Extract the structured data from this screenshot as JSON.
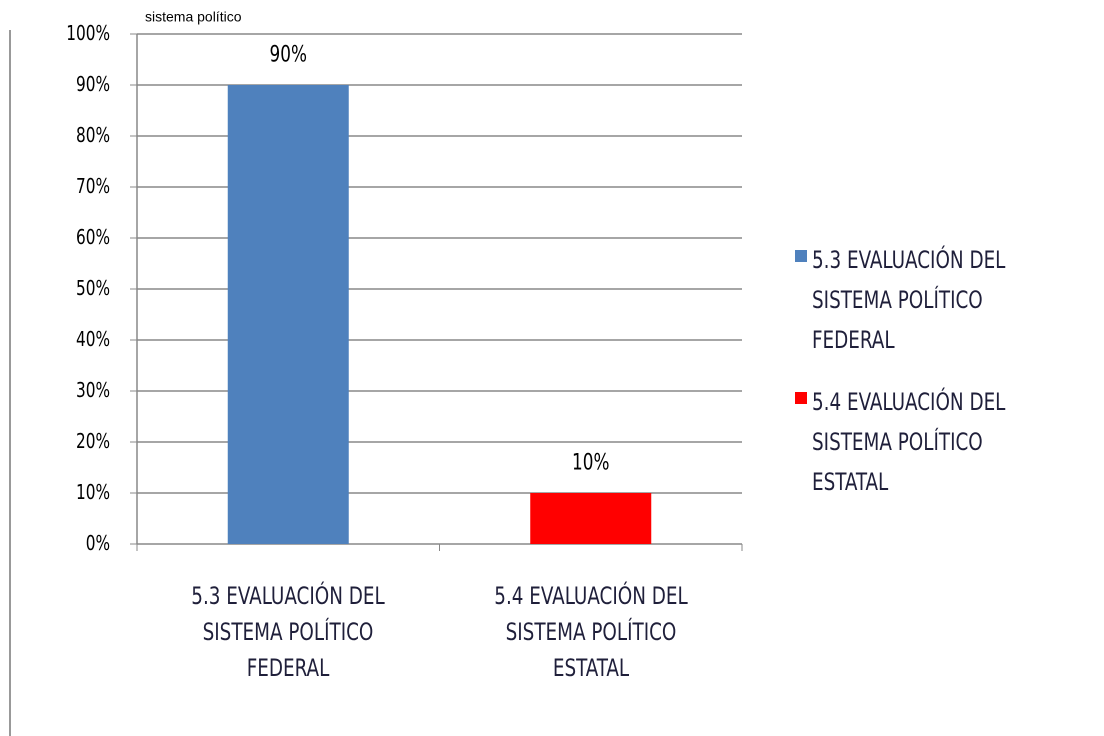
{
  "chart_data": {
    "type": "bar",
    "title": "sistema político",
    "categories": [
      "5.3 EVALUACIÓN DEL SISTEMA POLÍTICO FEDERAL",
      "5.4 EVALUACIÓN DEL SISTEMA POLÍTICO ESTATAL"
    ],
    "values": [
      90,
      10
    ],
    "value_labels": [
      "90%",
      "10%"
    ],
    "colors": [
      "#4f81bd",
      "#ff0000"
    ],
    "ylim": [
      0,
      100
    ],
    "yticks": [
      {
        "value": 0,
        "label": "0%"
      },
      {
        "value": 10,
        "label": "10%"
      },
      {
        "value": 20,
        "label": "20%"
      },
      {
        "value": 30,
        "label": "30%"
      },
      {
        "value": 40,
        "label": "40%"
      },
      {
        "value": 50,
        "label": "50%"
      },
      {
        "value": 60,
        "label": "60%"
      },
      {
        "value": 70,
        "label": "70%"
      },
      {
        "value": 80,
        "label": "80%"
      },
      {
        "value": 90,
        "label": "90%"
      },
      {
        "value": 100,
        "label": "100%"
      }
    ],
    "grid": true,
    "legend": "right"
  }
}
